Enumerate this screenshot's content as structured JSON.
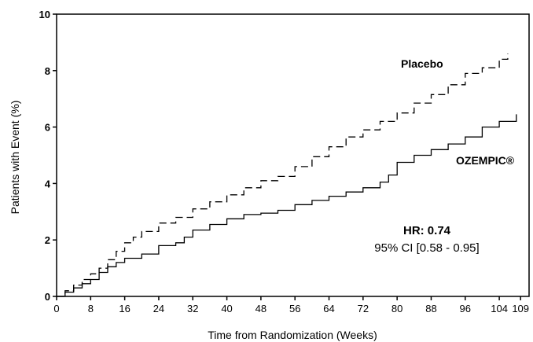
{
  "chart_data": {
    "type": "line",
    "xlabel": "Time from Randomization (Weeks)",
    "ylabel": "Patients with Event (%)",
    "xlim": [
      0,
      111
    ],
    "ylim": [
      0,
      10
    ],
    "xticks": [
      0,
      8,
      16,
      24,
      32,
      40,
      48,
      56,
      64,
      72,
      80,
      88,
      96,
      104,
      109
    ],
    "yticks": [
      0,
      2,
      4,
      6,
      8,
      10
    ],
    "grid": false,
    "series": [
      {
        "name": "Placebo",
        "style": "dashed-step",
        "x": [
          0,
          2,
          4,
          6,
          8,
          10,
          12,
          14,
          16,
          18,
          20,
          24,
          28,
          32,
          36,
          40,
          44,
          48,
          52,
          56,
          60,
          64,
          68,
          72,
          76,
          80,
          84,
          88,
          92,
          96,
          100,
          104,
          106
        ],
        "y": [
          0,
          0.2,
          0.4,
          0.6,
          0.8,
          1.0,
          1.3,
          1.6,
          1.9,
          2.1,
          2.3,
          2.6,
          2.8,
          3.1,
          3.35,
          3.6,
          3.85,
          4.1,
          4.25,
          4.6,
          4.95,
          5.3,
          5.65,
          5.9,
          6.2,
          6.5,
          6.85,
          7.15,
          7.5,
          7.9,
          8.1,
          8.4,
          8.6
        ]
      },
      {
        "name": "OZEMPIC®",
        "style": "solid-step",
        "x": [
          0,
          2,
          4,
          6,
          8,
          10,
          12,
          14,
          16,
          20,
          24,
          28,
          30,
          32,
          36,
          40,
          44,
          48,
          52,
          56,
          60,
          64,
          68,
          72,
          76,
          78,
          80,
          84,
          88,
          92,
          96,
          100,
          104,
          108
        ],
        "y": [
          0,
          0.15,
          0.3,
          0.45,
          0.6,
          0.85,
          1.05,
          1.2,
          1.35,
          1.5,
          1.8,
          1.9,
          2.1,
          2.35,
          2.55,
          2.75,
          2.9,
          2.95,
          3.05,
          3.25,
          3.4,
          3.55,
          3.7,
          3.85,
          4.05,
          4.3,
          4.75,
          5.0,
          5.2,
          5.4,
          5.65,
          6.0,
          6.2,
          6.45
        ]
      }
    ],
    "annotations": {
      "hr_label": "HR: 0.74",
      "ci_label": "95% CI [0.58 - 0.95]"
    }
  }
}
